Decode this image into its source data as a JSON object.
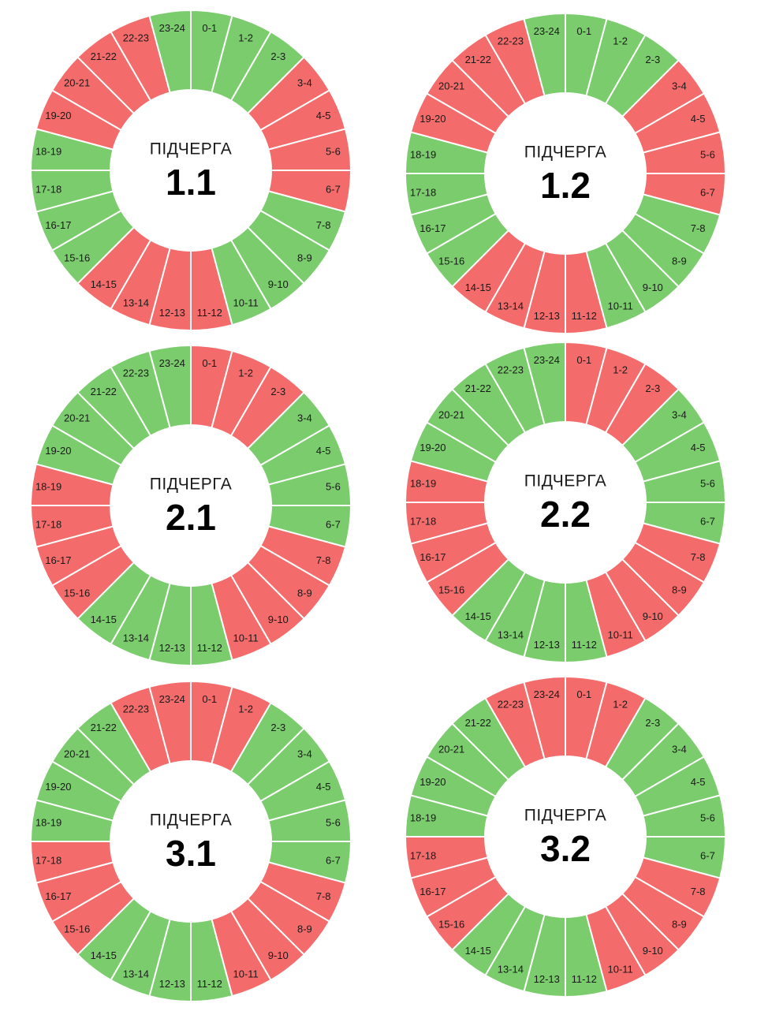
{
  "chart_data": [
    {
      "type": "pie",
      "label": "ПІДЧЕРГА",
      "number": "1.1",
      "categories": [
        "0-1",
        "1-2",
        "2-3",
        "3-4",
        "4-5",
        "5-6",
        "6-7",
        "7-8",
        "8-9",
        "9-10",
        "10-11",
        "11-12",
        "12-13",
        "13-14",
        "14-15",
        "15-16",
        "16-17",
        "17-18",
        "18-19",
        "19-20",
        "20-21",
        "21-22",
        "22-23",
        "23-24"
      ],
      "status": [
        "on",
        "on",
        "on",
        "off",
        "off",
        "off",
        "off",
        "on",
        "on",
        "on",
        "on",
        "off",
        "off",
        "off",
        "off",
        "on",
        "on",
        "on",
        "on",
        "off",
        "off",
        "off",
        "off",
        "on"
      ]
    },
    {
      "type": "pie",
      "label": "ПІДЧЕРГА",
      "number": "1.2",
      "categories": [
        "0-1",
        "1-2",
        "2-3",
        "3-4",
        "4-5",
        "5-6",
        "6-7",
        "7-8",
        "8-9",
        "9-10",
        "10-11",
        "11-12",
        "12-13",
        "13-14",
        "14-15",
        "15-16",
        "16-17",
        "17-18",
        "18-19",
        "19-20",
        "20-21",
        "21-22",
        "22-23",
        "23-24"
      ],
      "status": [
        "on",
        "on",
        "on",
        "off",
        "off",
        "off",
        "off",
        "on",
        "on",
        "on",
        "on",
        "off",
        "off",
        "off",
        "off",
        "on",
        "on",
        "on",
        "on",
        "off",
        "off",
        "off",
        "off",
        "on"
      ]
    },
    {
      "type": "pie",
      "label": "ПІДЧЕРГА",
      "number": "2.1",
      "categories": [
        "0-1",
        "1-2",
        "2-3",
        "3-4",
        "4-5",
        "5-6",
        "6-7",
        "7-8",
        "8-9",
        "9-10",
        "10-11",
        "11-12",
        "12-13",
        "13-14",
        "14-15",
        "15-16",
        "16-17",
        "17-18",
        "18-19",
        "19-20",
        "20-21",
        "21-22",
        "22-23",
        "23-24"
      ],
      "status": [
        "off",
        "off",
        "off",
        "on",
        "on",
        "on",
        "on",
        "off",
        "off",
        "off",
        "off",
        "on",
        "on",
        "on",
        "on",
        "off",
        "off",
        "off",
        "off",
        "on",
        "on",
        "on",
        "on",
        "on"
      ]
    },
    {
      "type": "pie",
      "label": "ПІДЧЕРГА",
      "number": "2.2",
      "categories": [
        "0-1",
        "1-2",
        "2-3",
        "3-4",
        "4-5",
        "5-6",
        "6-7",
        "7-8",
        "8-9",
        "9-10",
        "10-11",
        "11-12",
        "12-13",
        "13-14",
        "14-15",
        "15-16",
        "16-17",
        "17-18",
        "18-19",
        "19-20",
        "20-21",
        "21-22",
        "22-23",
        "23-24"
      ],
      "status": [
        "off",
        "off",
        "off",
        "on",
        "on",
        "on",
        "on",
        "off",
        "off",
        "off",
        "off",
        "on",
        "on",
        "on",
        "on",
        "off",
        "off",
        "off",
        "off",
        "on",
        "on",
        "on",
        "on",
        "on"
      ]
    },
    {
      "type": "pie",
      "label": "ПІДЧЕРГА",
      "number": "3.1",
      "categories": [
        "0-1",
        "1-2",
        "2-3",
        "3-4",
        "4-5",
        "5-6",
        "6-7",
        "7-8",
        "8-9",
        "9-10",
        "10-11",
        "11-12",
        "12-13",
        "13-14",
        "14-15",
        "15-16",
        "16-17",
        "17-18",
        "18-19",
        "19-20",
        "20-21",
        "21-22",
        "22-23",
        "23-24"
      ],
      "status": [
        "off",
        "off",
        "on",
        "on",
        "on",
        "on",
        "on",
        "off",
        "off",
        "off",
        "off",
        "on",
        "on",
        "on",
        "on",
        "off",
        "off",
        "off",
        "on",
        "on",
        "on",
        "on",
        "off",
        "off"
      ]
    },
    {
      "type": "pie",
      "label": "ПІДЧЕРГА",
      "number": "3.2",
      "categories": [
        "0-1",
        "1-2",
        "2-3",
        "3-4",
        "4-5",
        "5-6",
        "6-7",
        "7-8",
        "8-9",
        "9-10",
        "10-11",
        "11-12",
        "12-13",
        "13-14",
        "14-15",
        "15-16",
        "16-17",
        "17-18",
        "18-19",
        "19-20",
        "20-21",
        "21-22",
        "22-23",
        "23-24"
      ],
      "status": [
        "off",
        "off",
        "on",
        "on",
        "on",
        "on",
        "on",
        "off",
        "off",
        "off",
        "off",
        "on",
        "on",
        "on",
        "on",
        "off",
        "off",
        "off",
        "on",
        "on",
        "on",
        "on",
        "off",
        "off"
      ]
    }
  ],
  "colors": {
    "on": "#7acc6c",
    "off": "#f46b6b",
    "separator": "#ffffff"
  }
}
